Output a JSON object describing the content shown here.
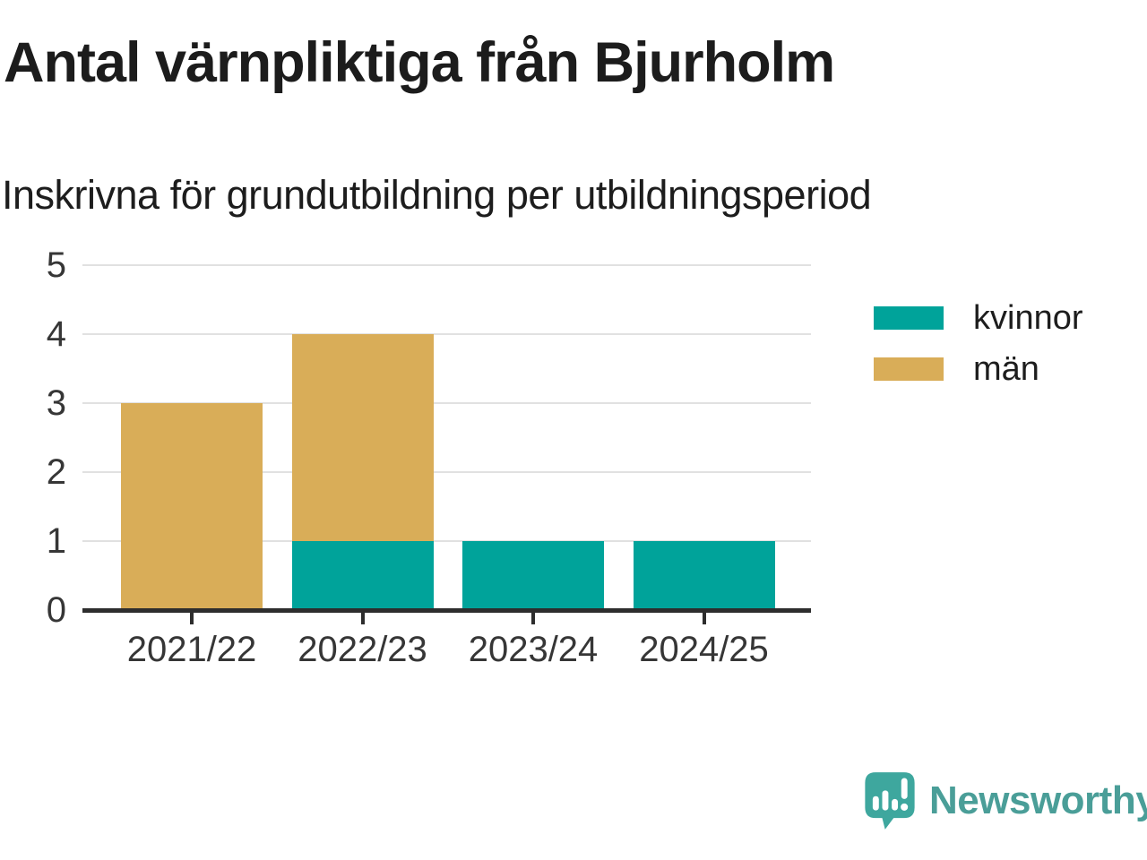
{
  "header": {
    "title": "Antal värnpliktiga från Bjurholm",
    "subtitle": "Inskrivna för grundutbildning per utbildningsperiod"
  },
  "chart_data": {
    "type": "bar",
    "stacked": true,
    "categories": [
      "2021/22",
      "2022/23",
      "2023/24",
      "2024/25"
    ],
    "series": [
      {
        "name": "kvinnor",
        "color": "#00a39a",
        "values": [
          0,
          1,
          1,
          1
        ]
      },
      {
        "name": "män",
        "color": "#d9ad58",
        "values": [
          3,
          3,
          0,
          0
        ]
      }
    ],
    "totals": [
      3,
      4,
      1,
      1
    ],
    "title": "Antal värnpliktiga från Bjurholm",
    "subtitle": "Inskrivna för grundutbildning per utbildningsperiod",
    "xlabel": "",
    "ylabel": "",
    "ylim": [
      0,
      5
    ],
    "yticks": [
      0,
      1,
      2,
      3,
      4,
      5
    ],
    "grid": true,
    "legend_position": "right"
  },
  "colors": {
    "kvinnor": "#00a39a",
    "man": "#d9ad58",
    "axis": "#2d2d2d",
    "gridline": "#e1e1e1",
    "text": "#1d1d1d",
    "tick_text": "#363636",
    "brand_teal": "#4a9e98",
    "logo_teal": "#3ea79e"
  },
  "footer": {
    "brand": "Newsworthy",
    "icon": "newsworthy-logo-icon"
  }
}
